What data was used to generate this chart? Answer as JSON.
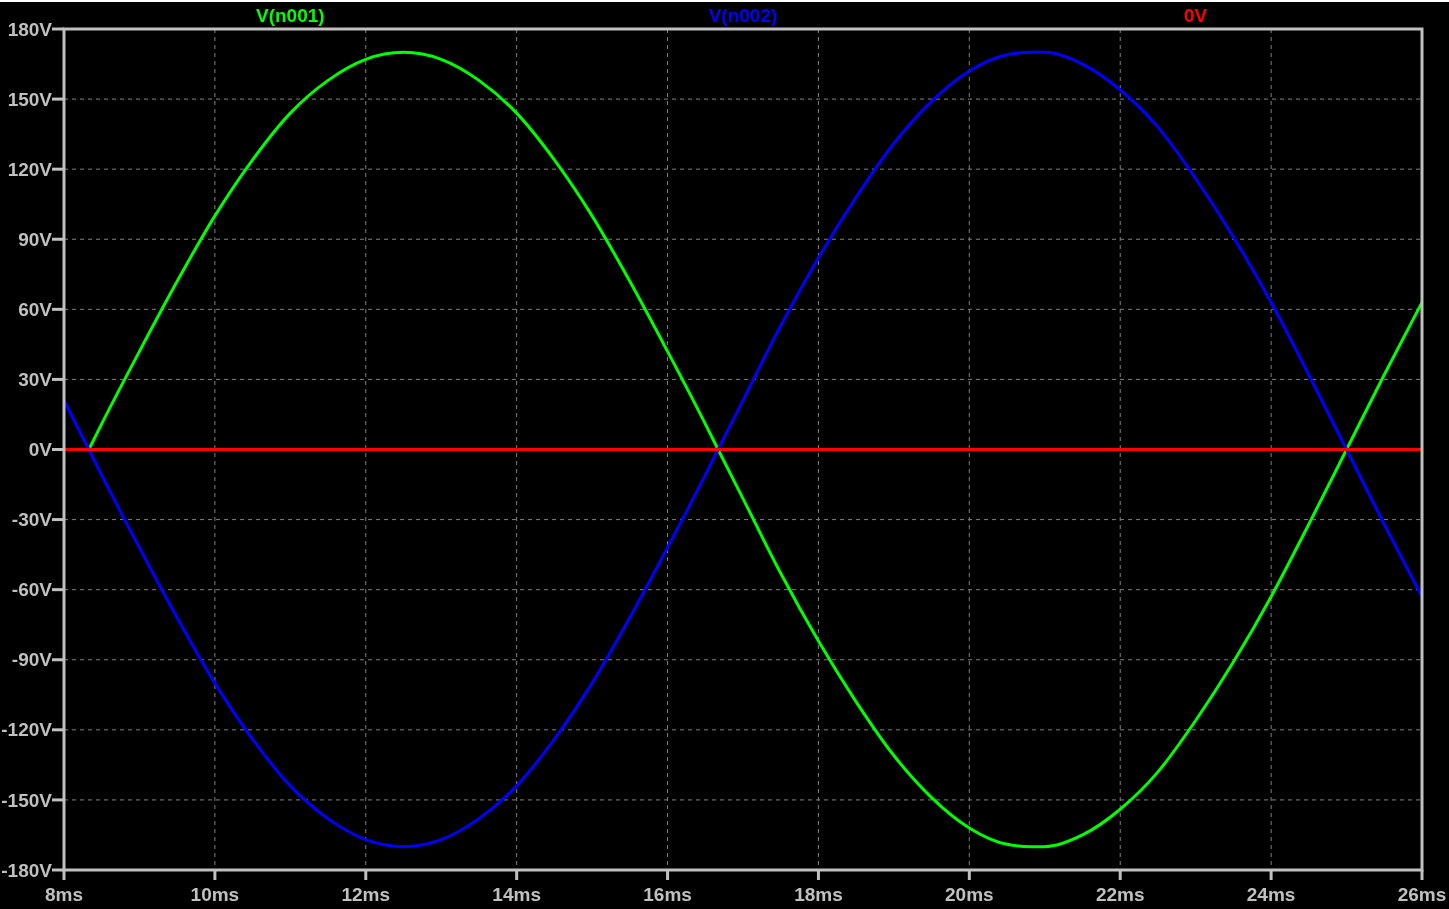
{
  "chart_data": {
    "type": "line",
    "series": [
      {
        "name": "V(n001)",
        "color": "#00ff00",
        "x": [
          8.33,
          8.5,
          9,
          9.5,
          10,
          10.5,
          11,
          11.5,
          12,
          12.5,
          13,
          13.5,
          14,
          14.5,
          15,
          15.5,
          16,
          16.5,
          16.67,
          17,
          17.5,
          18,
          18.5,
          19,
          19.5,
          20,
          20.5,
          20.83,
          21,
          21.5,
          22,
          22.5,
          23,
          23.5,
          24,
          24.5,
          25,
          25.5,
          26
        ],
        "values": [
          0,
          11,
          42,
          72,
          100,
          124,
          144,
          158,
          167,
          170,
          167,
          158,
          144,
          124,
          100,
          72,
          42,
          11,
          0,
          -21,
          -53,
          -82,
          -108,
          -131,
          -149,
          -162,
          -169,
          -170,
          -170,
          -165,
          -154,
          -138,
          -116,
          -91,
          -63,
          -32,
          0,
          32,
          63
        ]
      },
      {
        "name": "V(n002)",
        "color": "#0000ff",
        "x": [
          8,
          8.33,
          8.5,
          9,
          9.5,
          10,
          10.5,
          11,
          11.5,
          12,
          12.5,
          13,
          13.5,
          14,
          14.5,
          15,
          15.5,
          16,
          16.5,
          16.67,
          17,
          17.5,
          18,
          18.5,
          19,
          19.5,
          20,
          20.5,
          20.83,
          21,
          21.5,
          22,
          22.5,
          23,
          23.5,
          24,
          24.5,
          25,
          25.5,
          26
        ],
        "values": [
          21,
          0,
          -11,
          -42,
          -72,
          -100,
          -124,
          -144,
          -158,
          -167,
          -170,
          -167,
          -158,
          -144,
          -124,
          -100,
          -72,
          -42,
          -11,
          0,
          21,
          53,
          82,
          108,
          131,
          149,
          162,
          169,
          170,
          170,
          165,
          154,
          138,
          116,
          91,
          63,
          32,
          0,
          -32,
          -63
        ]
      },
      {
        "name": "0V",
        "color": "#ff0000",
        "x": [
          8,
          26
        ],
        "values": [
          0,
          0
        ]
      }
    ],
    "xlim": [
      8,
      26
    ],
    "xticks": [
      {
        "value": 8,
        "label": "8ms"
      },
      {
        "value": 10,
        "label": "10ms"
      },
      {
        "value": 12,
        "label": "12ms"
      },
      {
        "value": 14,
        "label": "14ms"
      },
      {
        "value": 16,
        "label": "16ms"
      },
      {
        "value": 18,
        "label": "18ms"
      },
      {
        "value": 20,
        "label": "20ms"
      },
      {
        "value": 22,
        "label": "22ms"
      },
      {
        "value": 24,
        "label": "24ms"
      },
      {
        "value": 26,
        "label": "26ms"
      }
    ],
    "ylim": [
      -180,
      180
    ],
    "yticks": [
      {
        "value": -180,
        "label": "-180V"
      },
      {
        "value": -150,
        "label": "-150V"
      },
      {
        "value": -120,
        "label": "-120V"
      },
      {
        "value": -90,
        "label": "-90V"
      },
      {
        "value": -60,
        "label": "-60V"
      },
      {
        "value": -30,
        "label": "-30V"
      },
      {
        "value": 0,
        "label": "0V"
      },
      {
        "value": 30,
        "label": "30V"
      },
      {
        "value": 60,
        "label": "60V"
      },
      {
        "value": 90,
        "label": "90V"
      },
      {
        "value": 120,
        "label": "120V"
      },
      {
        "value": 150,
        "label": "150V"
      },
      {
        "value": 180,
        "label": "180V"
      }
    ],
    "grid": true,
    "legend": "top"
  }
}
